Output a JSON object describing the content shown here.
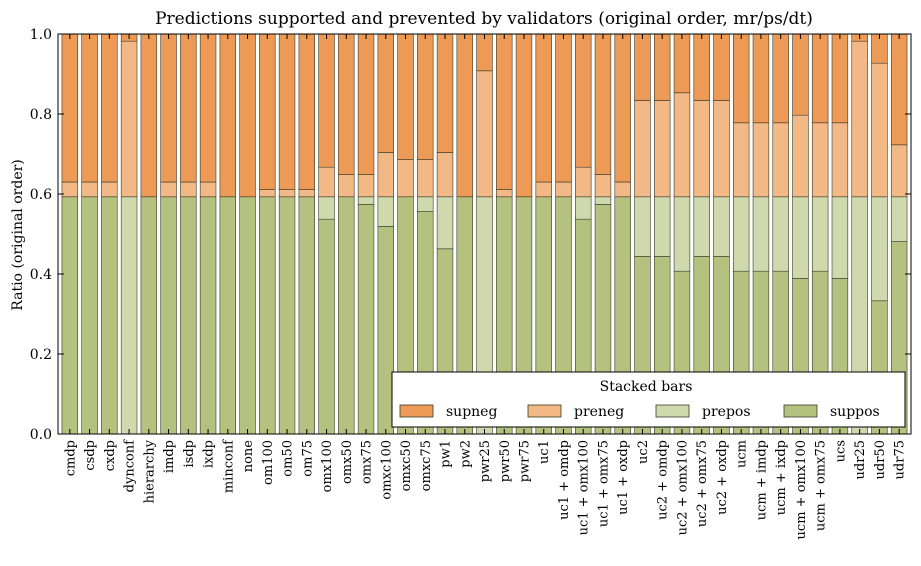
{
  "chart_data": {
    "type": "bar",
    "stacked": true,
    "title": "Predictions supported and prevented by validators (original order, mr/ps/dt)",
    "xlabel": "",
    "ylabel": "Ratio (original order)",
    "ylim": [
      0,
      1.0
    ],
    "yticks": [
      "0.0",
      "0.2",
      "0.4",
      "0.6",
      "0.8",
      "1.0"
    ],
    "grid": false,
    "legend": {
      "title": "Stacked bars",
      "placement": "lower-right",
      "columns": 4
    },
    "categories": [
      "cmdp",
      "csdp",
      "cxdp",
      "dynconf",
      "hierarchy",
      "imdp",
      "isdp",
      "ixdp",
      "minconf",
      "none",
      "om100",
      "om50",
      "om75",
      "omx100",
      "omx50",
      "omx75",
      "omxc100",
      "omxc50",
      "omxc75",
      "pw1",
      "pw2",
      "pwr25",
      "pwr50",
      "pwr75",
      "uc1",
      "uc1 + omdp",
      "uc1 + omx100",
      "uc1 + omx75",
      "uc1 + oxdp",
      "uc2",
      "uc2 + omdp",
      "uc2 + omx100",
      "uc2 + omx75",
      "uc2 + oxdp",
      "ucm",
      "ucm + imdp",
      "ucm + ixdp",
      "ucm + omx100",
      "ucm + omx75",
      "ucs",
      "udr25",
      "udr50",
      "udr75"
    ],
    "series": [
      {
        "name": "suppos",
        "color": "#b5c17f",
        "values": [
          0.593,
          0.593,
          0.593,
          0.0,
          0.593,
          0.593,
          0.593,
          0.593,
          0.593,
          0.593,
          0.593,
          0.593,
          0.593,
          0.537,
          0.593,
          0.574,
          0.519,
          0.593,
          0.556,
          0.463,
          0.593,
          0.0,
          0.593,
          0.593,
          0.593,
          0.593,
          0.537,
          0.574,
          0.593,
          0.444,
          0.444,
          0.407,
          0.444,
          0.444,
          0.407,
          0.407,
          0.407,
          0.389,
          0.407,
          0.389,
          0.0,
          0.333,
          0.481
        ]
      },
      {
        "name": "prepos",
        "color": "#cfd9ad",
        "values": [
          0.0,
          0.0,
          0.0,
          0.593,
          0.0,
          0.0,
          0.0,
          0.0,
          0.0,
          0.0,
          0.0,
          0.0,
          0.0,
          0.056,
          0.0,
          0.019,
          0.074,
          0.0,
          0.037,
          0.13,
          0.0,
          0.593,
          0.0,
          0.0,
          0.0,
          0.0,
          0.056,
          0.019,
          0.0,
          0.149,
          0.149,
          0.186,
          0.149,
          0.149,
          0.186,
          0.186,
          0.186,
          0.204,
          0.186,
          0.204,
          0.593,
          0.26,
          0.112
        ]
      },
      {
        "name": "preneg",
        "color": "#f2b885",
        "values": [
          0.037,
          0.037,
          0.037,
          0.389,
          0.0,
          0.037,
          0.037,
          0.037,
          0.0,
          0.0,
          0.018,
          0.018,
          0.018,
          0.074,
          0.056,
          0.056,
          0.111,
          0.093,
          0.093,
          0.111,
          0.0,
          0.315,
          0.018,
          0.0,
          0.037,
          0.037,
          0.074,
          0.056,
          0.037,
          0.241,
          0.241,
          0.26,
          0.241,
          0.241,
          0.185,
          0.185,
          0.185,
          0.204,
          0.185,
          0.185,
          0.389,
          0.334,
          0.13
        ]
      },
      {
        "name": "supneg",
        "color": "#ec9a55",
        "values": [
          0.37,
          0.37,
          0.37,
          0.018,
          0.407,
          0.37,
          0.37,
          0.37,
          0.407,
          0.407,
          0.389,
          0.389,
          0.389,
          0.333,
          0.351,
          0.351,
          0.296,
          0.314,
          0.314,
          0.296,
          0.407,
          0.092,
          0.389,
          0.407,
          0.37,
          0.37,
          0.333,
          0.351,
          0.37,
          0.166,
          0.166,
          0.147,
          0.166,
          0.166,
          0.222,
          0.222,
          0.222,
          0.203,
          0.222,
          0.222,
          0.018,
          0.073,
          0.277
        ]
      }
    ]
  }
}
